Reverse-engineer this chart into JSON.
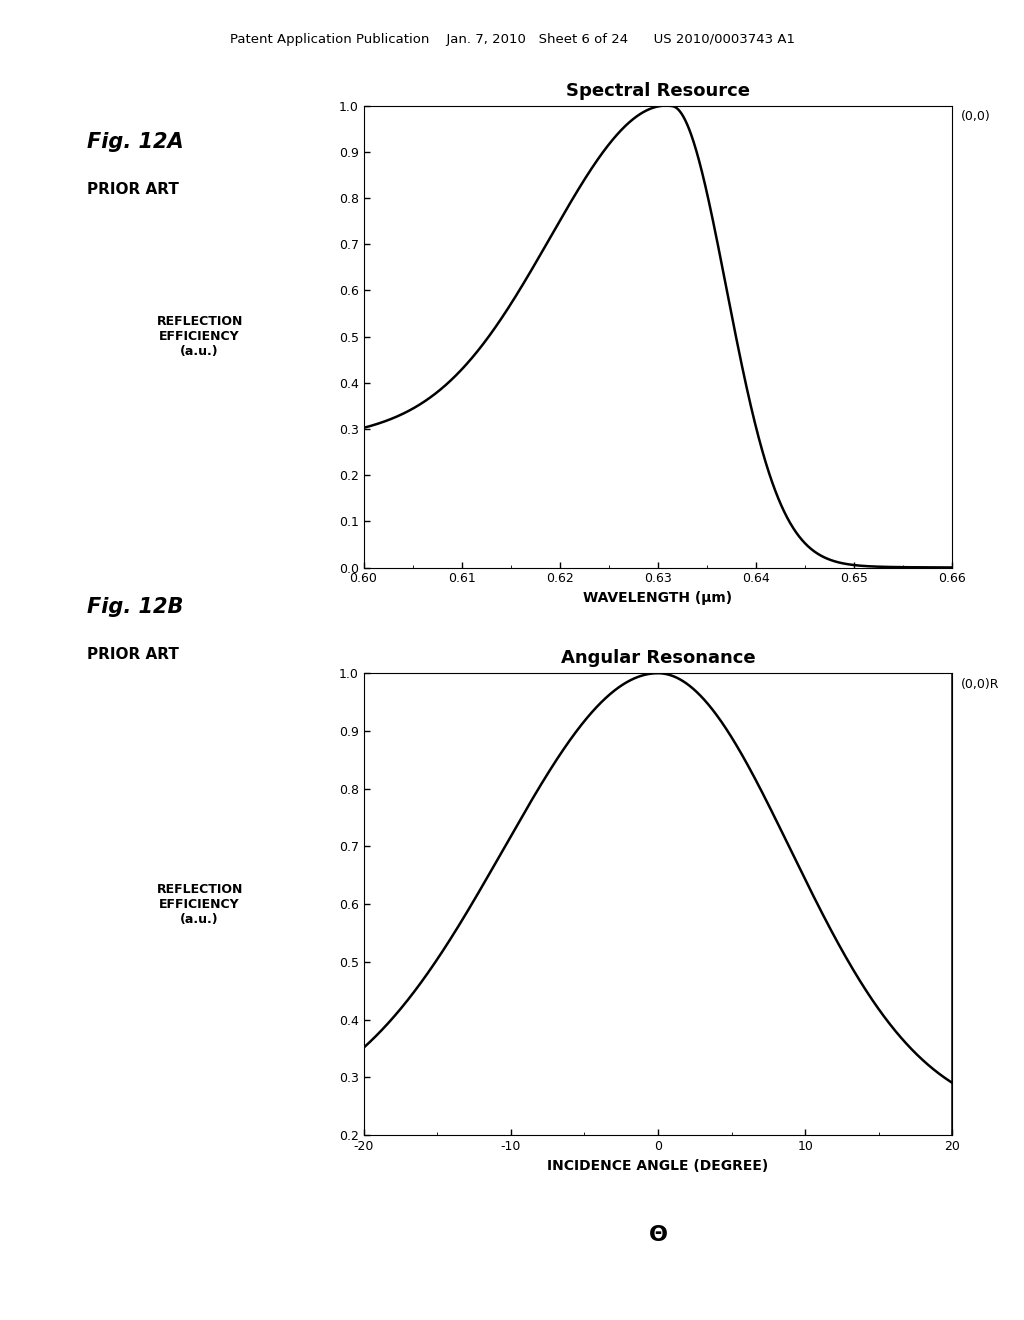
{
  "fig_title_top": "Patent Application Publication    Jan. 7, 2010   Sheet 6 of 24      US 2010/0003743 A1",
  "fig12a_label": "Fig. 12A",
  "fig12a_sublabel": "PRIOR ART",
  "fig12b_label": "Fig. 12B",
  "fig12b_sublabel": "PRIOR ART",
  "plot1_title": "Spectral Resource",
  "plot1_xlabel": "WAVELENGTH (μm)",
  "plot1_ylabel": "REFLECTION\nEFFICIENCY\n(a.u.)",
  "plot1_annotation": "(0,0)",
  "plot1_xlim": [
    0.6,
    0.66
  ],
  "plot1_ylim": [
    0.0,
    1.0
  ],
  "plot1_xticks": [
    0.6,
    0.61,
    0.62,
    0.63,
    0.64,
    0.65,
    0.66
  ],
  "plot1_yticks": [
    0.0,
    0.1,
    0.2,
    0.3,
    0.4,
    0.5,
    0.6,
    0.7,
    0.8,
    0.9,
    1.0
  ],
  "plot2_title": "Angular Resonance",
  "plot2_xlabel": "INCIDENCE ANGLE (DEGREE)",
  "plot2_xlabel2": "Θ",
  "plot2_ylabel": "REFLECTION\nEFFICIENCY\n(a.u.)",
  "plot2_annotation": "(0,0)R",
  "plot2_xlim": [
    -20,
    20
  ],
  "plot2_ylim": [
    0.2,
    1.0
  ],
  "plot2_xticks": [
    -20,
    -10,
    0,
    10,
    20
  ],
  "plot2_yticks": [
    0.2,
    0.3,
    0.4,
    0.5,
    0.6,
    0.7,
    0.8,
    0.9,
    1.0
  ],
  "background_color": "#ffffff",
  "line_color": "#000000",
  "text_color": "#000000"
}
